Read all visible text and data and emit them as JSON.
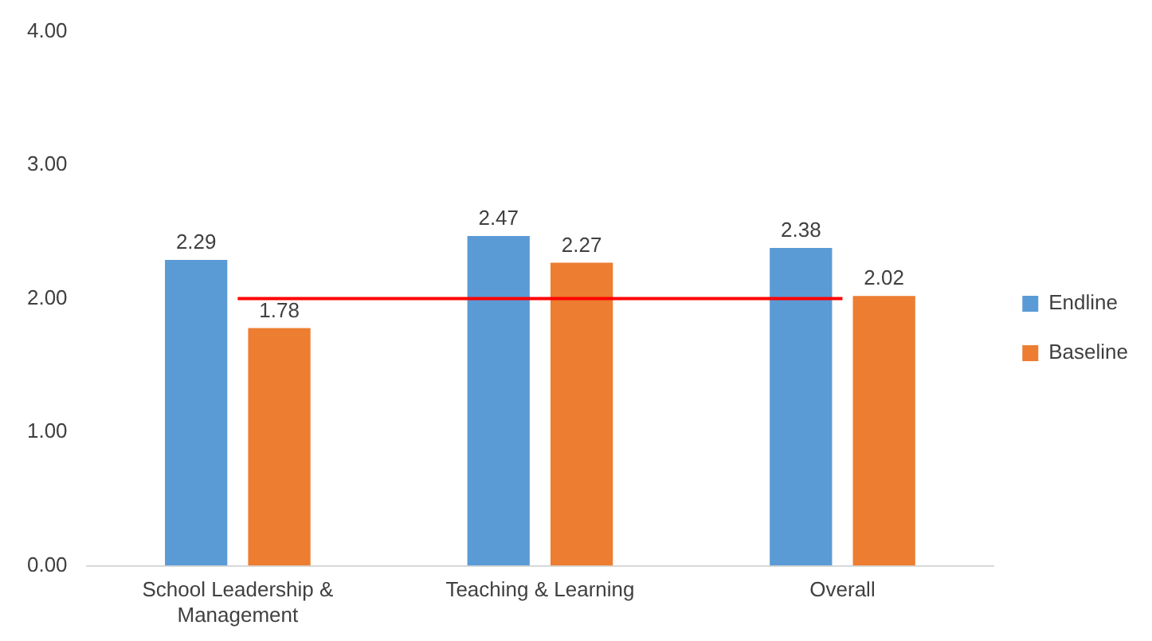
{
  "chart_data": {
    "type": "bar",
    "categories": [
      "School Leadership & Management",
      "Teaching & Learning",
      "Overall"
    ],
    "series": [
      {
        "name": "Endline",
        "color": "#5b9bd5",
        "values": [
          2.29,
          2.47,
          2.38
        ]
      },
      {
        "name": "Baseline",
        "color": "#ed7d31",
        "values": [
          1.78,
          2.27,
          2.02
        ]
      }
    ],
    "ylim": [
      0,
      4
    ],
    "yticks": [
      {
        "value": 0,
        "label": "0.00"
      },
      {
        "value": 1,
        "label": "1.00"
      },
      {
        "value": 2,
        "label": "2.00"
      },
      {
        "value": 3,
        "label": "3.00"
      },
      {
        "value": 4,
        "label": "4.00"
      }
    ],
    "grid": false,
    "legend": "right",
    "data_labels": true,
    "ref_lines": [
      {
        "axis": "y",
        "value": 2,
        "color": "#ff0000"
      }
    ]
  }
}
